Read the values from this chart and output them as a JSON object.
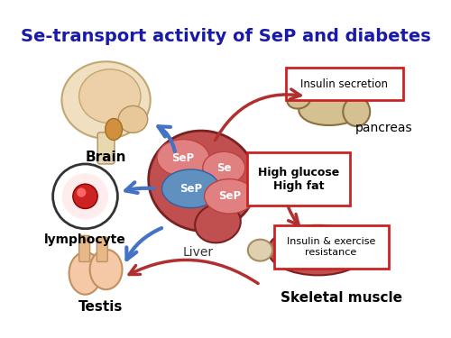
{
  "title": "Se-transport activity of SeP and diabetes",
  "title_color": "#1a1aaa",
  "title_fontsize": 14,
  "background_color": "#ffffff",
  "liver_label": "Liver",
  "pancreas_label": "pancreas",
  "muscle_label": "Skeletal muscle",
  "brain_label": "Brain",
  "lymphocyte_label": "lymphocyte",
  "testis_label": "Testis",
  "arrow_blue_color": "#4472c4",
  "arrow_red_color": "#b03030",
  "figsize": [
    5.0,
    3.75
  ],
  "dpi": 100
}
